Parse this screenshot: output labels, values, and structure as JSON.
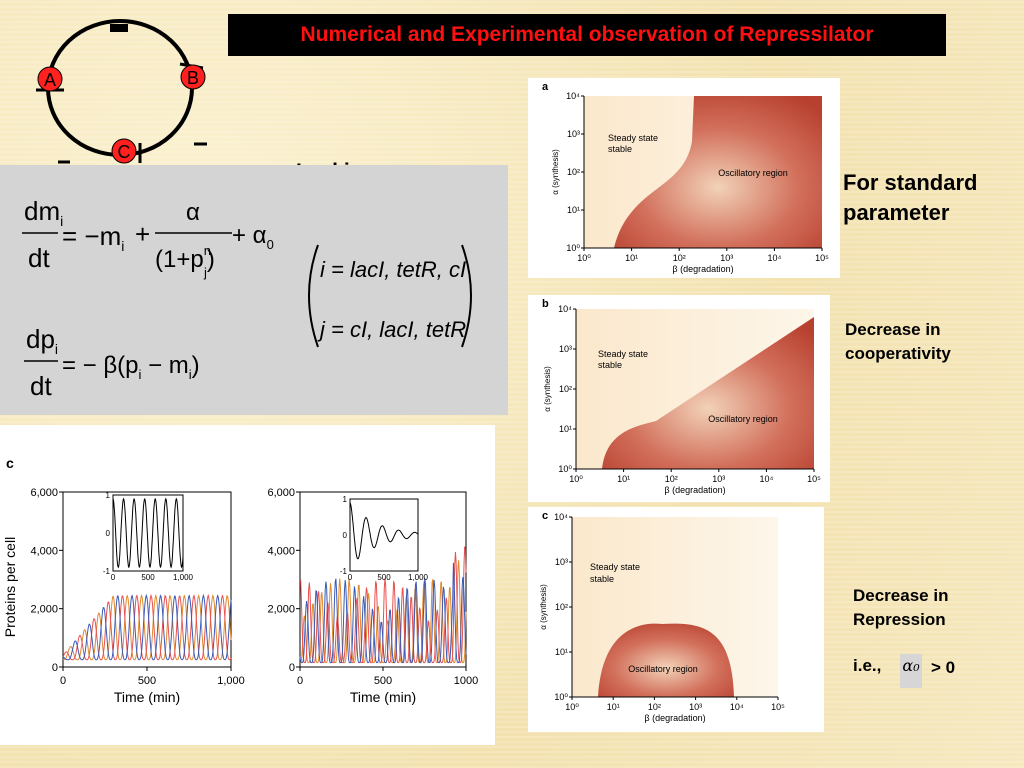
{
  "title": "Numerical and Experimental observation of Repressilator",
  "network": {
    "node_a": "A",
    "node_b": "B",
    "node_c": "C"
  },
  "leakiness_label": "Leakiness",
  "equations": {
    "eq1_left_num": "dm",
    "eq1_left_sub": "i",
    "eq1_left_den": "dt",
    "eq1_rhs_start": "= −m",
    "eq1_rhs_sub": "i",
    "eq1_plus": "+",
    "eq1_frac_num": "α",
    "eq1_frac_den": "(1+p",
    "eq1_frac_sup": "n",
    "eq1_frac_sub": "j",
    "eq1_frac_close": ")",
    "eq1_tail": "+ α",
    "eq1_tail_sub": "0",
    "eq2_left_num": "dp",
    "eq2_left_sub": "i",
    "eq2_left_den": "dt",
    "eq2_rhs": "= − β(p",
    "eq2_rhs_sub1": "i",
    "eq2_rhs_mid": " − m",
    "eq2_rhs_sub2": "i",
    "eq2_rhs_end": ")",
    "index_i": "i = lacI, tetR, cI",
    "index_j": "j = cI, lacI, tetR"
  },
  "side_labels": {
    "standard": [
      "For standard",
      "parameter"
    ],
    "cooperativity": [
      "Decrease in",
      "cooperativity"
    ],
    "repression": [
      "Decrease in",
      "Repression"
    ],
    "ie": "i.e.,",
    "alpha0": "α₀",
    "gt": ">  0"
  },
  "phase_panels": [
    {
      "letter": "a",
      "steady": [
        "Steady state",
        "stable"
      ],
      "region": "Oscillatory region",
      "ylabel": "α (synthesis)",
      "xlabel": "β (degradation)",
      "yticks": [
        "10⁰",
        "10¹",
        "10²",
        "10³",
        "10⁴"
      ],
      "xticks": [
        "10⁰",
        "10¹",
        "10²",
        "10³",
        "10⁴",
        "10⁵"
      ]
    },
    {
      "letter": "b",
      "steady": [
        "Steady state",
        "stable"
      ],
      "region": "Oscillatory region",
      "ylabel": "α (synthesis)",
      "xlabel": "β (degradation)",
      "yticks": [
        "10⁰",
        "10¹",
        "10²",
        "10³",
        "10⁴"
      ],
      "xticks": [
        "10⁰",
        "10¹",
        "10²",
        "10³",
        "10⁴",
        "10⁵"
      ]
    },
    {
      "letter": "c",
      "steady": [
        "Steady state",
        "stable"
      ],
      "region": "Oscillatory region",
      "ylabel": "α (synthesis)",
      "xlabel": "β (degradation)",
      "yticks": [
        "10⁰",
        "10¹",
        "10²",
        "10³",
        "10⁴"
      ],
      "xticks": [
        "10⁰",
        "10¹",
        "10²",
        "10³",
        "10⁴",
        "10⁵"
      ]
    }
  ],
  "chart_data": [
    {
      "type": "line",
      "letter": "c",
      "ylabel": "Proteins per cell",
      "xlabel": "Time (min)",
      "yticks": [
        "0",
        "2,000",
        "4,000",
        "6,000"
      ],
      "xticks": [
        "0",
        "500",
        "1,000"
      ],
      "xlim": [
        0,
        1000
      ],
      "ylim": [
        0,
        6000
      ],
      "inset": {
        "yticks": [
          "-1",
          "0",
          "1"
        ],
        "xticks": [
          "0",
          "500",
          "1,000"
        ]
      }
    },
    {
      "type": "line",
      "ylabel": "",
      "xlabel": "Time (min)",
      "yticks": [
        "0",
        "2,000",
        "4,000",
        "6,000"
      ],
      "xticks": [
        "0",
        "500",
        "1000"
      ],
      "xlim": [
        0,
        1000
      ],
      "ylim": [
        0,
        6000
      ],
      "inset": {
        "yticks": [
          "-1",
          "0",
          "1"
        ],
        "xticks": [
          "0",
          "500",
          "1,000"
        ]
      }
    }
  ],
  "colors": {
    "title_bg": "#000000",
    "title_text": "#ff1010",
    "region": "#c84b3c",
    "series1": "#e08a2c",
    "series2": "#e85050",
    "series3": "#3a5ab8"
  }
}
